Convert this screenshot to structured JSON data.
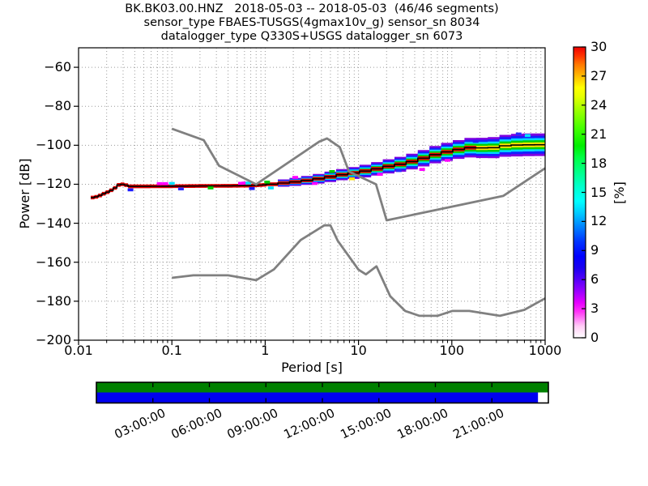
{
  "figure": {
    "title_line1": "BK.BK03.00.HNZ   2018-05-03 -- 2018-05-03  (46/46 segments)",
    "title_line2": "sensor_type FBAES-TUSGS(4gmax10v_g) sensor_sn 8034",
    "title_line3": "datalogger_type Q330S+USGS datalogger_sn 6073"
  },
  "chart_data": {
    "type": "heatmap",
    "xlabel": "Period [s]",
    "ylabel": "Power [dB]",
    "colorbar_label": "[%]",
    "x_axis": {
      "scale": "log",
      "min": 0.01,
      "max": 1000,
      "tick_labels": [
        "0.01",
        "0.1",
        "1",
        "10",
        "100",
        "1000"
      ],
      "tick_values": [
        0.01,
        0.1,
        1,
        10,
        100,
        1000
      ]
    },
    "y_axis": {
      "min": -200,
      "max": -50,
      "tick_values": [
        -60,
        -80,
        -100,
        -120,
        -140,
        -160,
        -180,
        -200
      ],
      "tick_labels": [
        "−60",
        "−80",
        "−100",
        "−120",
        "−140",
        "−160",
        "−180",
        "−200"
      ]
    },
    "colorbar": {
      "min": 0,
      "max": 30,
      "tick_values": [
        0,
        3,
        6,
        9,
        12,
        15,
        18,
        21,
        24,
        27,
        30
      ],
      "tick_labels": [
        "0",
        "3",
        "6",
        "9",
        "12",
        "15",
        "18",
        "21",
        "24",
        "27",
        "30"
      ],
      "colormap_stops": [
        [
          0.0,
          "#ffffff"
        ],
        [
          0.04,
          "#ffccf5"
        ],
        [
          0.09,
          "#ff33f7"
        ],
        [
          0.12,
          "#e600ff"
        ],
        [
          0.16,
          "#9900ff"
        ],
        [
          0.2,
          "#5500f7"
        ],
        [
          0.24,
          "#1a00f0"
        ],
        [
          0.28,
          "#0000ff"
        ],
        [
          0.33,
          "#0033ff"
        ],
        [
          0.38,
          "#0080ff"
        ],
        [
          0.43,
          "#00ccff"
        ],
        [
          0.47,
          "#00ffff"
        ],
        [
          0.52,
          "#00ffcc"
        ],
        [
          0.57,
          "#00ff88"
        ],
        [
          0.62,
          "#00ff44"
        ],
        [
          0.66,
          "#00ee00"
        ],
        [
          0.72,
          "#44ff00"
        ],
        [
          0.78,
          "#99ff00"
        ],
        [
          0.83,
          "#e6ff00"
        ],
        [
          0.86,
          "#ffff00"
        ],
        [
          0.9,
          "#ffbb00"
        ],
        [
          0.94,
          "#ff7700"
        ],
        [
          0.97,
          "#ff3300"
        ],
        [
          1.0,
          "#ee0000"
        ]
      ]
    },
    "grid": {
      "style": "dotted",
      "color": "#9a9a9a",
      "x_minor": true
    },
    "noise_models": {
      "color": "#808080",
      "nhnm_points": [
        [
          0.1,
          -91.5
        ],
        [
          0.22,
          -97.4
        ],
        [
          0.32,
          -110.5
        ],
        [
          0.8,
          -120.0
        ],
        [
          3.8,
          -98.1
        ],
        [
          4.6,
          -96.5
        ],
        [
          6.3,
          -101.0
        ],
        [
          7.9,
          -113.5
        ],
        [
          15.4,
          -120.0
        ],
        [
          20.0,
          -138.5
        ],
        [
          354.8,
          -126.0
        ],
        [
          1000,
          -111.8
        ]
      ],
      "nlnm_points": [
        [
          0.1,
          -168.0
        ],
        [
          0.17,
          -166.7
        ],
        [
          0.4,
          -166.7
        ],
        [
          0.8,
          -169.2
        ],
        [
          1.24,
          -163.7
        ],
        [
          2.4,
          -148.6
        ],
        [
          4.3,
          -141.1
        ],
        [
          5.0,
          -141.1
        ],
        [
          6.0,
          -149.0
        ],
        [
          10.0,
          -163.8
        ],
        [
          12.0,
          -166.2
        ],
        [
          15.6,
          -162.1
        ],
        [
          21.9,
          -177.5
        ],
        [
          31.6,
          -185.0
        ],
        [
          45.0,
          -187.5
        ],
        [
          70.0,
          -187.5
        ],
        [
          101.0,
          -185.0
        ],
        [
          154.0,
          -185.0
        ],
        [
          328.0,
          -187.5
        ],
        [
          600.0,
          -184.4
        ],
        [
          1000,
          -178.5
        ]
      ]
    },
    "ppsd": {
      "mode_color": "#000000",
      "mode_points": [
        [
          0.0135,
          -127.0
        ],
        [
          0.016,
          -126.3
        ],
        [
          0.018,
          -125.2
        ],
        [
          0.021,
          -123.8
        ],
        [
          0.024,
          -122.3
        ],
        [
          0.027,
          -120.3
        ],
        [
          0.031,
          -119.9
        ],
        [
          0.034,
          -121.1
        ],
        [
          0.05,
          -121.1
        ],
        [
          0.1,
          -121.0
        ],
        [
          0.2,
          -120.9
        ],
        [
          0.4,
          -120.8
        ],
        [
          0.7,
          -120.7
        ],
        [
          1.0,
          -120.3
        ],
        [
          1.5,
          -119.5
        ],
        [
          2.2,
          -118.7
        ],
        [
          3.2,
          -117.7
        ],
        [
          4.7,
          -116.4
        ],
        [
          7.0,
          -114.9
        ],
        [
          10.0,
          -113.9
        ],
        [
          15.0,
          -112.3
        ],
        [
          22.0,
          -110.6
        ],
        [
          31.0,
          -109.4
        ],
        [
          45.0,
          -107.3
        ],
        [
          70.0,
          -104.5
        ],
        [
          110.0,
          -102.4
        ],
        [
          160.0,
          -101.2
        ],
        [
          230.0,
          -101.4
        ],
        [
          300.0,
          -101.2
        ],
        [
          380.0,
          -100.2
        ],
        [
          550.0,
          -99.8
        ],
        [
          1000,
          -99.7
        ]
      ],
      "core": {
        "color": "#e60000",
        "half_db": 0.95,
        "period_range": [
          0.0135,
          170
        ]
      },
      "layers": [
        {
          "color": "#7d00e0",
          "half_db": 5.8,
          "min_period": 1.3
        },
        {
          "color": "#1420ff",
          "half_db": 4.6,
          "min_period": 1.3
        },
        {
          "color": "#00d8ff",
          "half_db": 3.4,
          "min_period": 1.4
        },
        {
          "color": "#00d000",
          "half_db": 2.3,
          "min_period": 1.5
        },
        {
          "color": "#ffe000",
          "half_db": 1.2,
          "min_period": 14
        }
      ],
      "scatter_cells": [
        [
          0.036,
          -122.9,
          "#1a1aff"
        ],
        [
          0.074,
          -119.7,
          "#ff00ff"
        ],
        [
          0.085,
          -119.7,
          "#ff00ff"
        ],
        [
          0.1,
          -119.6,
          "#00e0ff"
        ],
        [
          0.125,
          -122.4,
          "#2a2aff"
        ],
        [
          0.26,
          -121.9,
          "#00cc00"
        ],
        [
          0.55,
          -119.5,
          "#ff00ff"
        ],
        [
          0.6,
          -119.4,
          "#ff00ff"
        ],
        [
          0.66,
          -119.4,
          "#00e0ff"
        ],
        [
          0.72,
          -122.2,
          "#1a1aff"
        ],
        [
          1.05,
          -118.9,
          "#00cc00"
        ],
        [
          1.15,
          -121.9,
          "#00e0ff"
        ],
        [
          2.1,
          -116.5,
          "#ff00ff"
        ],
        [
          3.4,
          -119.6,
          "#ff00ff"
        ],
        [
          5.2,
          -113.5,
          "#00cc00"
        ],
        [
          8.5,
          -117.2,
          "#ffe000"
        ],
        [
          17,
          -114.9,
          "#ff00ff"
        ],
        [
          27,
          -113.0,
          "#2a2aff"
        ],
        [
          48,
          -112.4,
          "#ff00ff"
        ],
        [
          90,
          -107.7,
          "#ff00ff"
        ],
        [
          180,
          -98.0,
          "#1a1aff"
        ],
        [
          520,
          -94.2,
          "#2a2aff"
        ],
        [
          650,
          -95.0,
          "#00e0ff"
        ]
      ]
    },
    "timeline": {
      "row_top_color": "#008000",
      "row_bottom_color": "#0000f0",
      "gap_color": "#ffffff",
      "coverage_top": [
        0,
        1
      ],
      "coverage_bottom": [
        0,
        0.977
      ],
      "hours_total": 24,
      "tick_interval_hours": 3,
      "tick_labels": [
        "03:00:00",
        "06:00:00",
        "09:00:00",
        "12:00:00",
        "15:00:00",
        "18:00:00",
        "21:00:00"
      ]
    }
  }
}
